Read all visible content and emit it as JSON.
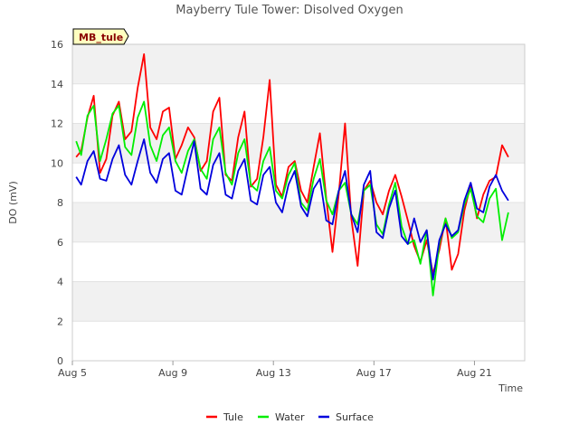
{
  "chart_data": {
    "type": "line",
    "title": "Mayberry Tule Tower: Disolved Oxygen",
    "xlabel": "Time",
    "ylabel": "DO (mV)",
    "site_label": "MB_tule",
    "xlim": [
      5,
      23
    ],
    "ylim": [
      0,
      16
    ],
    "xticks": [
      {
        "value": 5,
        "label": "Aug 5"
      },
      {
        "value": 9,
        "label": "Aug 9"
      },
      {
        "value": 13,
        "label": "Aug 13"
      },
      {
        "value": 17,
        "label": "Aug 17"
      },
      {
        "value": 21,
        "label": "Aug 21"
      }
    ],
    "yticks": [
      0,
      2,
      4,
      6,
      8,
      10,
      12,
      14,
      16
    ],
    "grid": "alternating horizontal bands",
    "legend_position": "bottom-center",
    "series": [
      {
        "name": "Tule",
        "color": "#ff0000",
        "x": [
          5.15,
          5.35,
          5.6,
          5.85,
          6.1,
          6.35,
          6.6,
          6.85,
          7.1,
          7.35,
          7.6,
          7.85,
          8.1,
          8.35,
          8.6,
          8.85,
          9.1,
          9.35,
          9.6,
          9.85,
          10.1,
          10.35,
          10.6,
          10.85,
          11.1,
          11.35,
          11.6,
          11.85,
          12.1,
          12.35,
          12.6,
          12.85,
          13.1,
          13.35,
          13.6,
          13.85,
          14.1,
          14.35,
          14.6,
          14.85,
          15.1,
          15.35,
          15.6,
          15.85,
          16.1,
          16.35,
          16.6,
          16.85,
          17.1,
          17.35,
          17.6,
          17.85,
          18.1,
          18.35,
          18.6,
          18.85,
          19.1,
          19.35,
          19.6,
          19.85,
          20.1,
          20.35,
          20.6,
          20.85,
          21.1,
          21.35,
          21.6,
          21.85,
          22.1,
          22.35
        ],
        "y": [
          10.3,
          10.6,
          12.3,
          13.4,
          9.5,
          10.2,
          12.4,
          13.1,
          11.2,
          11.6,
          13.8,
          15.5,
          11.8,
          11.2,
          12.6,
          12.8,
          10.2,
          10.9,
          11.8,
          11.3,
          9.6,
          10.1,
          12.6,
          13.3,
          9.4,
          9.1,
          11.3,
          12.6,
          8.8,
          9.2,
          11.3,
          14.2,
          8.9,
          8.3,
          9.8,
          10.1,
          8.6,
          8.0,
          9.8,
          11.5,
          8.2,
          5.5,
          8.4,
          12.0,
          7.2,
          4.8,
          8.6,
          9.1,
          8.0,
          7.4,
          8.6,
          9.4,
          8.3,
          7.1,
          5.8,
          5.0,
          6.1,
          4.4,
          5.6,
          7.2,
          4.6,
          5.4,
          7.6,
          8.9,
          7.2,
          8.4,
          9.1,
          9.3,
          10.9,
          10.3
        ]
      },
      {
        "name": "Water",
        "color": "#00ee00",
        "x": [
          5.15,
          5.35,
          5.6,
          5.85,
          6.1,
          6.35,
          6.6,
          6.85,
          7.1,
          7.35,
          7.6,
          7.85,
          8.1,
          8.35,
          8.6,
          8.85,
          9.1,
          9.35,
          9.6,
          9.85,
          10.1,
          10.35,
          10.6,
          10.85,
          11.1,
          11.35,
          11.6,
          11.85,
          12.1,
          12.35,
          12.6,
          12.85,
          13.1,
          13.35,
          13.6,
          13.85,
          14.1,
          14.35,
          14.6,
          14.85,
          15.1,
          15.35,
          15.6,
          15.85,
          16.1,
          16.35,
          16.6,
          16.85,
          17.1,
          17.35,
          17.6,
          17.85,
          18.1,
          18.35,
          18.6,
          18.85,
          19.1,
          19.35,
          19.6,
          19.85,
          20.1,
          20.35,
          20.6,
          20.85,
          21.1,
          21.35,
          21.6,
          21.85,
          22.1,
          22.35
        ],
        "y": [
          11.1,
          10.4,
          12.4,
          12.9,
          10.1,
          11.2,
          12.5,
          12.9,
          10.8,
          10.4,
          12.3,
          13.1,
          10.9,
          10.1,
          11.4,
          11.8,
          10.1,
          9.5,
          10.6,
          11.2,
          9.7,
          9.2,
          11.2,
          11.8,
          9.5,
          8.9,
          10.5,
          11.2,
          8.9,
          8.6,
          10.1,
          10.8,
          8.6,
          8.2,
          9.4,
          10.0,
          8.0,
          7.6,
          9.2,
          10.2,
          8.1,
          7.4,
          8.6,
          9.0,
          7.4,
          6.9,
          8.6,
          8.9,
          6.9,
          6.4,
          7.9,
          9.0,
          6.8,
          5.9,
          6.1,
          4.9,
          6.6,
          3.3,
          5.9,
          7.2,
          6.2,
          6.5,
          7.9,
          8.7,
          7.3,
          7.0,
          8.2,
          8.7,
          6.1,
          7.5
        ]
      },
      {
        "name": "Surface",
        "color": "#0000dd",
        "x": [
          5.15,
          5.35,
          5.6,
          5.85,
          6.1,
          6.35,
          6.6,
          6.85,
          7.1,
          7.35,
          7.6,
          7.85,
          8.1,
          8.35,
          8.6,
          8.85,
          9.1,
          9.35,
          9.6,
          9.85,
          10.1,
          10.35,
          10.6,
          10.85,
          11.1,
          11.35,
          11.6,
          11.85,
          12.1,
          12.35,
          12.6,
          12.85,
          13.1,
          13.35,
          13.6,
          13.85,
          14.1,
          14.35,
          14.6,
          14.85,
          15.1,
          15.35,
          15.6,
          15.85,
          16.1,
          16.35,
          16.6,
          16.85,
          17.1,
          17.35,
          17.6,
          17.85,
          18.1,
          18.35,
          18.6,
          18.85,
          19.1,
          19.35,
          19.6,
          19.85,
          20.1,
          20.35,
          20.6,
          20.85,
          21.1,
          21.35,
          21.6,
          21.85,
          22.1,
          22.35
        ],
        "y": [
          9.3,
          8.9,
          10.1,
          10.6,
          9.2,
          9.1,
          10.2,
          10.9,
          9.4,
          8.9,
          10.1,
          11.2,
          9.5,
          9.0,
          10.2,
          10.5,
          8.6,
          8.4,
          9.8,
          11.1,
          8.7,
          8.4,
          9.9,
          10.5,
          8.4,
          8.2,
          9.6,
          10.2,
          8.1,
          7.9,
          9.4,
          9.8,
          8.0,
          7.5,
          8.9,
          9.6,
          7.8,
          7.3,
          8.7,
          9.2,
          7.1,
          6.9,
          8.6,
          9.6,
          7.4,
          6.5,
          8.9,
          9.6,
          6.5,
          6.2,
          7.7,
          8.6,
          6.3,
          5.9,
          7.2,
          6.0,
          6.6,
          4.1,
          6.1,
          6.9,
          6.3,
          6.6,
          8.1,
          9.0,
          7.7,
          7.5,
          8.8,
          9.4,
          8.6,
          8.1
        ]
      }
    ]
  }
}
